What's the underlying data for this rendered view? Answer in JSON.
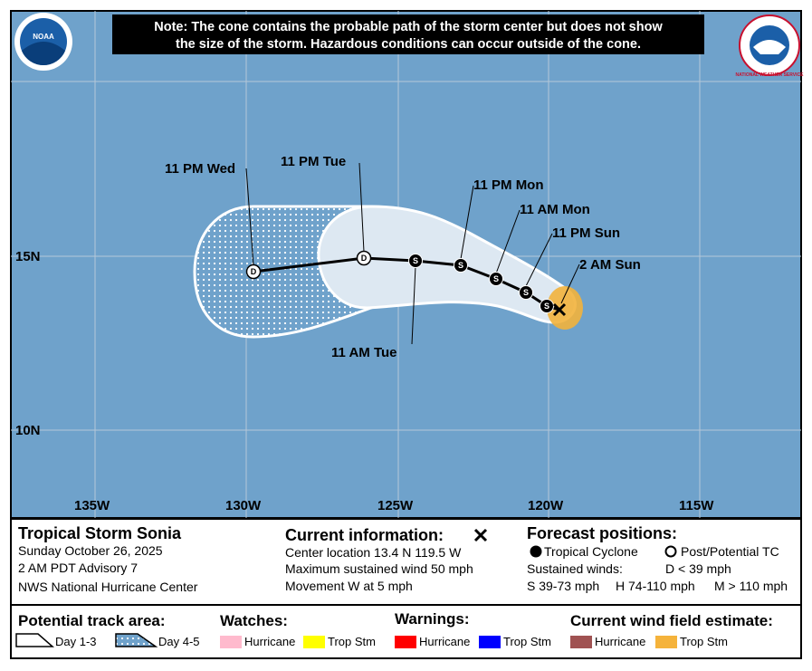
{
  "note": [
    "Note: The cone contains the probable path of the storm center but does not show",
    "the size of the storm. Hazardous conditions can occur outside of the cone."
  ],
  "logos": {
    "left": "NOAA",
    "right": "NATIONAL WEATHER SERVICE"
  },
  "map": {
    "lon_labels": [
      "135W",
      "130W",
      "125W",
      "120W",
      "115W"
    ],
    "lat_labels": [
      "15N",
      "10N"
    ],
    "time_labels": [
      "11 PM Wed",
      "11 PM Tue",
      "11 PM Mon",
      "11 AM Mon",
      "11 PM Sun",
      "2 AM Sun",
      "11 AM Tue"
    ],
    "point_letters": [
      "S",
      "S",
      "S",
      "S",
      "S",
      "D",
      "D"
    ]
  },
  "info": {
    "storm": "Tropical Storm Sonia",
    "date": "Sunday October 26, 2025",
    "advisory": "2 AM PDT Advisory 7",
    "center": "NWS National Hurricane Center",
    "current_title": "Current information:",
    "current_lines": [
      "Center location 13.4 N 119.5 W",
      "Maximum sustained wind 50 mph",
      "Movement W at 5 mph"
    ],
    "forecast_title": "Forecast positions:",
    "tropical_cyclone": "Tropical Cyclone",
    "post_tc": "Post/Potential TC",
    "sustained": "Sustained winds:",
    "d": "D < 39 mph",
    "s": "S 39-73 mph",
    "h": "H 74-110 mph",
    "m": "M > 110 mph"
  },
  "legend": {
    "track_title": "Potential track area:",
    "day13": "Day 1-3",
    "day45": "Day 4-5",
    "watches": "Watches:",
    "watch_hu": "Hurricane",
    "watch_ts": "Trop Stm",
    "warnings": "Warnings:",
    "warn_hu": "Hurricane",
    "warn_ts": "Trop Stm",
    "wind": "Current wind field estimate:",
    "wind_hu": "Hurricane",
    "wind_ts": "Trop Stm"
  }
}
